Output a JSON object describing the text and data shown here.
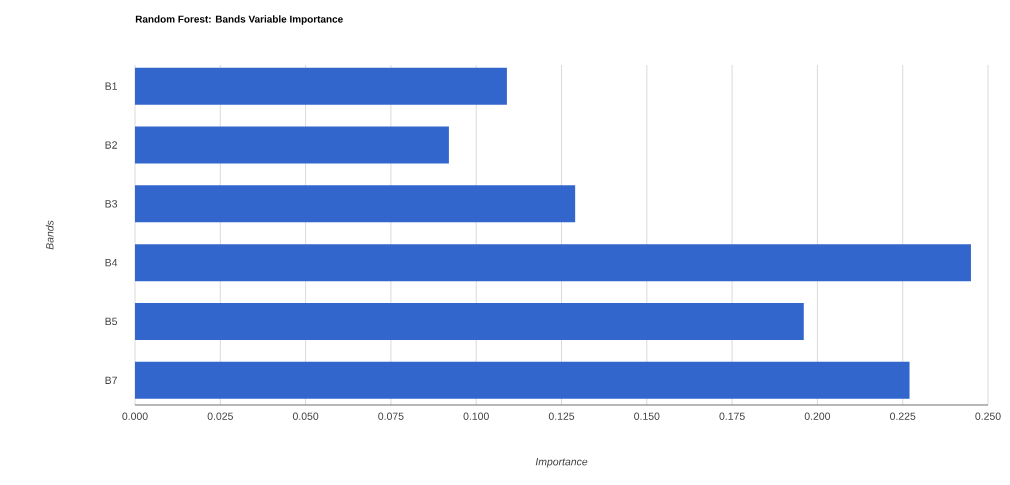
{
  "chart_data": {
    "type": "bar",
    "orientation": "horizontal",
    "title": "Random Forest: Bands Variable Importance",
    "xlabel": "Importance",
    "ylabel": "Bands",
    "categories": [
      "B1",
      "B2",
      "B3",
      "B4",
      "B5",
      "B7"
    ],
    "values": [
      0.109,
      0.092,
      0.129,
      0.245,
      0.196,
      0.227
    ],
    "color": "#3366cc",
    "xlim": [
      0,
      0.25
    ],
    "xticks": [
      {
        "value": 0,
        "label": "0.000"
      },
      {
        "value": 0.025,
        "label": "0.025"
      },
      {
        "value": 0.05,
        "label": "0.050"
      },
      {
        "value": 0.075,
        "label": "0.075"
      },
      {
        "value": 0.1,
        "label": "0.100"
      },
      {
        "value": 0.125,
        "label": "0.125"
      },
      {
        "value": 0.15,
        "label": "0.150"
      },
      {
        "value": 0.175,
        "label": "0.175"
      },
      {
        "value": 0.2,
        "label": "0.200"
      },
      {
        "value": 0.225,
        "label": "0.225"
      },
      {
        "value": 0.25,
        "label": "0.250"
      }
    ],
    "grid": "x"
  }
}
